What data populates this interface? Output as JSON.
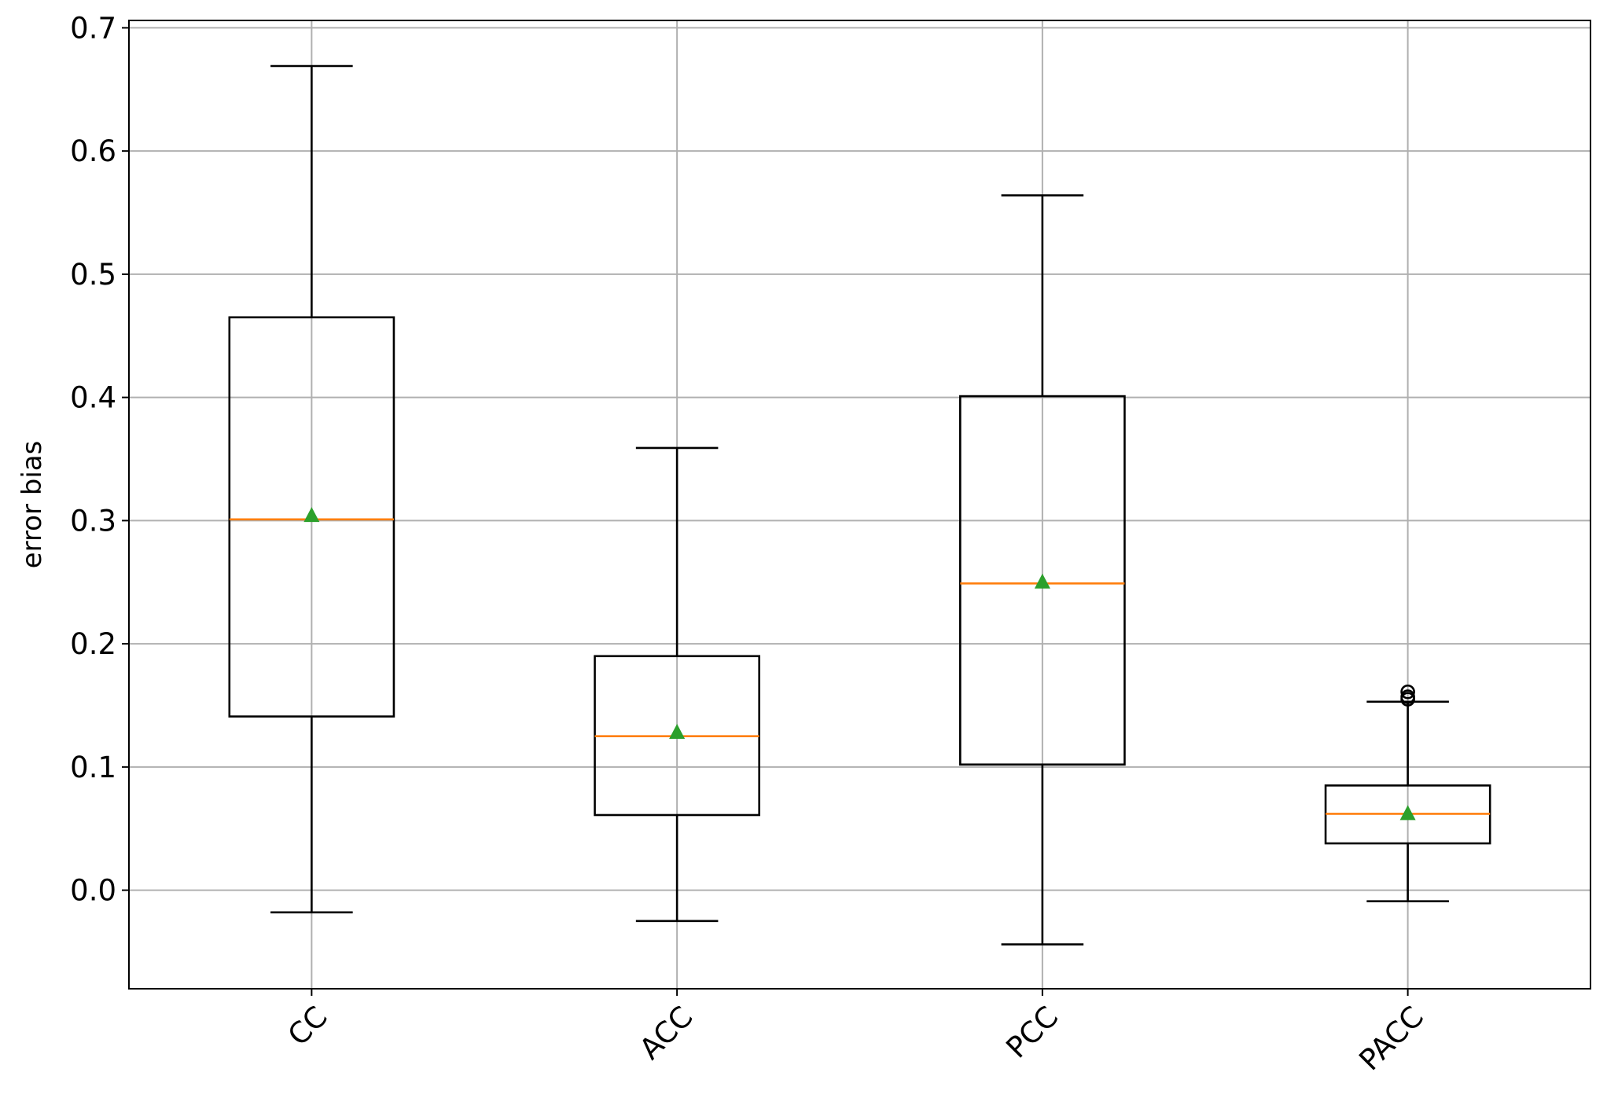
{
  "chart_data": {
    "type": "boxplot",
    "title": "",
    "xlabel": "",
    "ylabel": "error bias",
    "ylim": [
      -0.08,
      0.706
    ],
    "yticks": [
      "0.0",
      "0.1",
      "0.2",
      "0.3",
      "0.4",
      "0.5",
      "0.6",
      "0.7"
    ],
    "ytick_values": [
      0.0,
      0.1,
      0.2,
      0.3,
      0.4,
      0.5,
      0.6,
      0.7
    ],
    "grid": true,
    "xtick_rotation_deg": 45,
    "categories": [
      "CC",
      "ACC",
      "PCC",
      "PACC"
    ],
    "boxes": [
      {
        "label": "CC",
        "whisker_low": -0.018,
        "q1": 0.141,
        "median": 0.301,
        "q3": 0.465,
        "whisker_high": 0.669,
        "mean": 0.304,
        "outliers": []
      },
      {
        "label": "ACC",
        "whisker_low": -0.025,
        "q1": 0.061,
        "median": 0.125,
        "q3": 0.19,
        "whisker_high": 0.359,
        "mean": 0.128,
        "outliers": []
      },
      {
        "label": "PCC",
        "whisker_low": -0.044,
        "q1": 0.102,
        "median": 0.249,
        "q3": 0.401,
        "whisker_high": 0.564,
        "mean": 0.25,
        "outliers": []
      },
      {
        "label": "PACC",
        "whisker_low": -0.009,
        "q1": 0.038,
        "median": 0.062,
        "q3": 0.085,
        "whisker_high": 0.153,
        "mean": 0.062,
        "outliers": [
          0.155,
          0.157,
          0.161
        ]
      }
    ],
    "colors": {
      "median": "#ff7f0e",
      "mean": "#2ca02c",
      "box": "#000000",
      "grid": "#b0b0b0"
    }
  }
}
